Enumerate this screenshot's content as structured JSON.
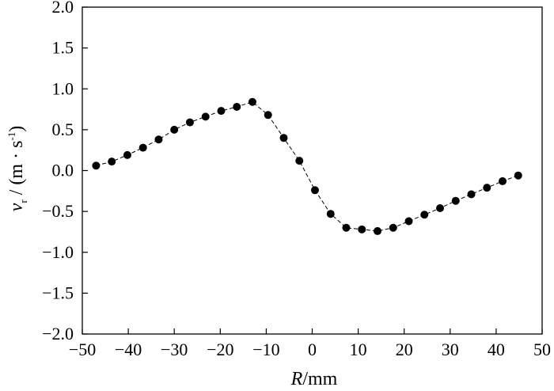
{
  "chart_data": {
    "type": "scatter",
    "title": "",
    "xlabel": {
      "var": "R",
      "unit": "/mm"
    },
    "ylabel": {
      "var": "v",
      "sub": "r",
      "unit_open": " / (m · s",
      "sup": "-1",
      "unit_close": ")"
    },
    "xlim": [
      -50,
      50
    ],
    "ylim": [
      -2.0,
      2.0
    ],
    "x_ticks": [
      -50,
      -40,
      -30,
      -20,
      -10,
      0,
      10,
      20,
      30,
      40,
      50
    ],
    "y_ticks": [
      -2.0,
      -1.5,
      -1.0,
      -0.5,
      0.0,
      0.5,
      1.0,
      1.5,
      2.0
    ],
    "x_tick_labels": [
      "−50",
      "−40",
      "−30",
      "−20",
      "−10",
      "0",
      "10",
      "20",
      "30",
      "40",
      "50"
    ],
    "y_tick_labels": [
      "−2.0",
      "−1.5",
      "−1.0",
      "−0.5",
      "0.0",
      "0.5",
      "1.0",
      "1.5",
      "2.0"
    ],
    "grid": false,
    "line_style": "dashed",
    "series": [
      {
        "x": [
          -47,
          -43.6,
          -40.2,
          -36.8,
          -33.4,
          -30,
          -26.6,
          -23.2,
          -19.8,
          -16.4,
          -13,
          -9.6,
          -6.2,
          -2.8,
          0.6,
          4,
          7.4,
          10.8,
          14.2,
          17.6,
          21,
          24.4,
          27.8,
          31.2,
          34.6,
          38,
          41.4,
          44.8
        ],
        "y": [
          0.06,
          0.11,
          0.19,
          0.28,
          0.38,
          0.5,
          0.59,
          0.66,
          0.73,
          0.78,
          0.84,
          0.68,
          0.4,
          0.12,
          -0.24,
          -0.53,
          -0.7,
          -0.72,
          -0.74,
          -0.7,
          -0.62,
          -0.54,
          -0.46,
          -0.37,
          -0.29,
          -0.21,
          -0.13,
          -0.06
        ]
      }
    ]
  }
}
